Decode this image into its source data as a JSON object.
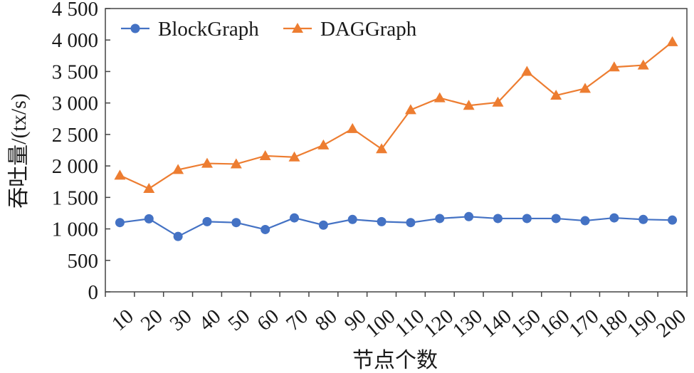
{
  "chart_data": {
    "type": "line",
    "xlabel": "节点个数",
    "ylabel": "吞吐量/(tx/s)",
    "categories": [
      "10",
      "20",
      "30",
      "40",
      "50",
      "60",
      "70",
      "80",
      "90",
      "100",
      "110",
      "120",
      "130",
      "140",
      "150",
      "160",
      "170",
      "180",
      "190",
      "200"
    ],
    "ylim": [
      0,
      4500
    ],
    "yticks": [
      0,
      500,
      1000,
      1500,
      2000,
      2500,
      3000,
      3500,
      4000,
      4500
    ],
    "ytick_labels": [
      "0",
      "500",
      "1 000",
      "1 500",
      "2 000",
      "2 500",
      "3 000",
      "3 500",
      "4 000",
      "4 500"
    ],
    "grid": false,
    "legend_position": "top-left",
    "series": [
      {
        "name": "BlockGraph",
        "marker": "circle",
        "color": "#4472c4",
        "values": [
          1100,
          1160,
          880,
          1115,
          1100,
          990,
          1175,
          1060,
          1150,
          1115,
          1100,
          1165,
          1195,
          1165,
          1165,
          1165,
          1130,
          1175,
          1150,
          1140
        ]
      },
      {
        "name": "DAGGraph",
        "marker": "triangle",
        "color": "#ed7d31",
        "values": [
          1850,
          1640,
          1940,
          2040,
          2030,
          2160,
          2140,
          2330,
          2590,
          2270,
          2890,
          3080,
          2960,
          3010,
          3500,
          3120,
          3230,
          3570,
          3600,
          3970
        ]
      }
    ]
  }
}
